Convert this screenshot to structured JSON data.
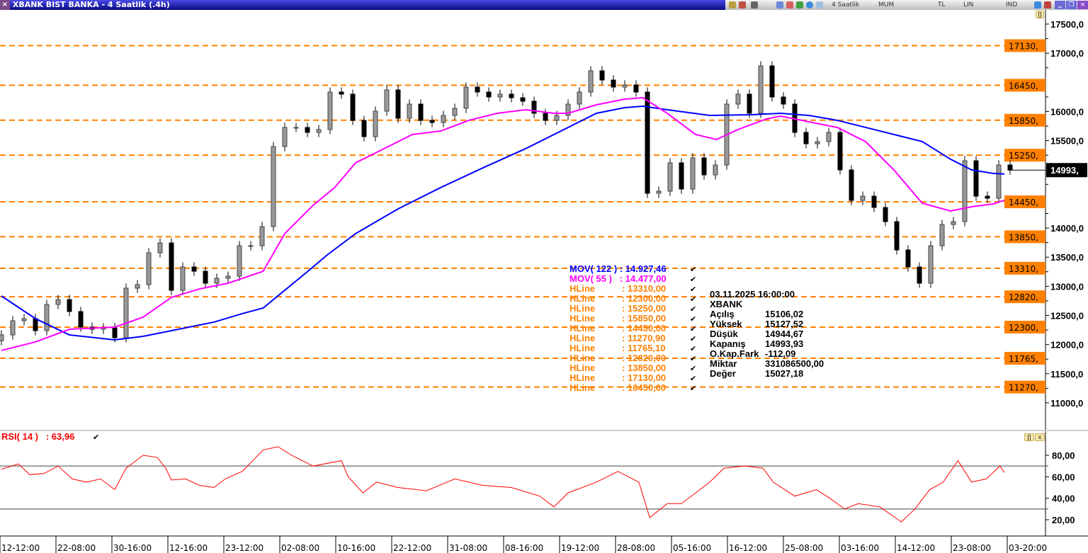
{
  "window": {
    "title": "XBANK BIST BANKA - 4 Saatlik (.4h)",
    "close_glyph": "×"
  },
  "toolbar": {
    "period": "4 Saatlik",
    "chart_type": "MUM",
    "currency": "TL",
    "scale": "LIN",
    "indicator": "IND",
    "minimize": "‗",
    "restore": "❐",
    "close": "×"
  },
  "legend": {
    "mov122": {
      "label": "MOV( 122 )",
      "value": ": 14.927,46",
      "color": "#0000ff"
    },
    "mov55": {
      "label": "MOV( 55 )",
      "value": ": 14.477,00",
      "color": "#ff00ff"
    },
    "hlines": [
      {
        "label": "HLine",
        "value": ": 13310,00"
      },
      {
        "label": "HLine",
        "value": ": 12300,00"
      },
      {
        "label": "HLine",
        "value": ": 15250,00"
      },
      {
        "label": "HLine",
        "value": ": 15850,00"
      },
      {
        "label": "HLine",
        "value": ": 14450,00"
      },
      {
        "label": "HLine",
        "value": ": 11270,90"
      },
      {
        "label": "HLine",
        "value": ": 11765,10"
      },
      {
        "label": "HLine",
        "value": ": 12820,00"
      },
      {
        "label": "HLine",
        "value": ": 13850,00"
      },
      {
        "label": "HLine",
        "value": ": 17130,00"
      },
      {
        "label": "HLine",
        "value": ": 16450,00"
      }
    ],
    "hline_color": "#ff8000",
    "check": "✔"
  },
  "info": {
    "datetime": "03.11.2025  16:00:00",
    "symbol": "XBANK",
    "rows": [
      {
        "k": "Açılış",
        "v": "15106,02"
      },
      {
        "k": "Yüksek",
        "v": "15127,52"
      },
      {
        "k": "Düşük",
        "v": "14944,67"
      },
      {
        "k": "Kapanış",
        "v": "14993,93"
      },
      {
        "k": "O.Kap.Fark",
        "v": "-112,09"
      },
      {
        "k": "Miktar",
        "v": "331086500,00"
      },
      {
        "k": "Değer",
        "v": "15027,18"
      }
    ]
  },
  "rsi": {
    "label": "RSI( 14 )",
    "value": ": 63,96",
    "color": "#ff0000",
    "check": "✔"
  },
  "panel_buttons": {
    "maximize": "[]",
    "close": "x"
  },
  "chart_data": [
    {
      "type": "candlestick",
      "ylim": [
        10600,
        17800
      ],
      "y_ticks": [
        "17500,0",
        "17000,0",
        "16000,0",
        "15500,0",
        "14000,0",
        "13500,0",
        "13000,0",
        "12500,0",
        "12000,0",
        "11500,0",
        "11000,0"
      ],
      "y_tick_values": [
        17500,
        17000,
        16000,
        15500,
        14000,
        13500,
        13000,
        12500,
        12000,
        11500,
        11000
      ],
      "last_price": {
        "value": 14993.93,
        "label": "14993,"
      },
      "hlines": [
        {
          "value": 17130,
          "label": "17130,"
        },
        {
          "value": 16450,
          "label": "16450,"
        },
        {
          "value": 15850,
          "label": "15850,"
        },
        {
          "value": 15250,
          "label": "15250,"
        },
        {
          "value": 14450,
          "label": "14450,"
        },
        {
          "value": 13850,
          "label": "13850,"
        },
        {
          "value": 13310,
          "label": "13310,"
        },
        {
          "value": 12820,
          "label": "12820,"
        },
        {
          "value": 12300,
          "label": "12300,"
        },
        {
          "value": 11765.1,
          "label": "11765,"
        },
        {
          "value": 11270.9,
          "label": "11270,"
        }
      ],
      "x_labels": [
        "12-12:00",
        "22-08:00",
        "30-16:00",
        "12-16:00",
        "23-12:00",
        "02-08:00",
        "10-16:00",
        "22-12:00",
        "31-08:00",
        "08-16:00",
        "19-12:00",
        "28-08:00",
        "05-16:00",
        "16-12:00",
        "25-08:00",
        "03-16:00",
        "14-12:00",
        "23-08:00",
        "03-20:00"
      ],
      "close": [
        12166,
        12409,
        12445,
        12239,
        12688,
        12773,
        12567,
        12300,
        12263,
        12288,
        12118,
        12968,
        13029,
        13575,
        13745,
        12931,
        13332,
        13259,
        13053,
        13138,
        13174,
        13697,
        13697,
        14025,
        15398,
        15726,
        15726,
        15641,
        15690,
        16334,
        16297,
        15847,
        15568,
        16006,
        16370,
        15884,
        16127,
        15847,
        15811,
        15932,
        16054,
        16419,
        16334,
        16249,
        16297,
        16236,
        16176,
        15969,
        15847,
        15932,
        16127,
        16334,
        16698,
        16540,
        16419,
        16455,
        16334,
        14596,
        14632,
        15119,
        14669,
        15204,
        14912,
        15082,
        16127,
        16297,
        15969,
        16783,
        16249,
        16127,
        15641,
        15446,
        15483,
        15641,
        14997,
        14474,
        14547,
        14353,
        14110,
        13624,
        13332,
        13053,
        13697,
        14061,
        14110,
        15155,
        14547,
        14511,
        15082,
        14993.93
      ],
      "series": [
        {
          "name": "MOV( 122 )",
          "color": "#0000ff",
          "points": [
            [
              0,
              12834
            ],
            [
              3,
              12446
            ],
            [
              6,
              12166
            ],
            [
              10,
              12081
            ],
            [
              12.5,
              12142
            ],
            [
              15,
              12239
            ],
            [
              18.75,
              12385
            ],
            [
              21.25,
              12531
            ],
            [
              23.1,
              12628
            ],
            [
              25,
              12932
            ],
            [
              26.9,
              13235
            ],
            [
              28.75,
              13539
            ],
            [
              31.25,
              13904
            ],
            [
              35,
              14329
            ],
            [
              38.75,
              14694
            ],
            [
              42.5,
              15034
            ],
            [
              46.25,
              15362
            ],
            [
              50,
              15726
            ],
            [
              52.5,
              15969
            ],
            [
              55,
              16066
            ],
            [
              56.6,
              16091
            ],
            [
              58.75,
              16030
            ],
            [
              62.5,
              15933
            ],
            [
              66.25,
              15945
            ],
            [
              68.75,
              15969
            ],
            [
              71.25,
              15933
            ],
            [
              73.75,
              15848
            ],
            [
              77.5,
              15666
            ],
            [
              81.25,
              15484
            ],
            [
              83.75,
              15180
            ],
            [
              85.6,
              14998
            ],
            [
              87.5,
              14937
            ],
            [
              88.5,
              14927
            ]
          ]
        },
        {
          "name": "MOV( 55 )",
          "color": "#ff00ff",
          "points": [
            [
              0,
              11899
            ],
            [
              3,
              12045
            ],
            [
              6,
              12263
            ],
            [
              10,
              12300
            ],
            [
              12.5,
              12470
            ],
            [
              15,
              12810
            ],
            [
              17.5,
              12956
            ],
            [
              20,
              13053
            ],
            [
              23.1,
              13259
            ],
            [
              25,
              13904
            ],
            [
              27.5,
              14390
            ],
            [
              29.4,
              14694
            ],
            [
              31.25,
              15119
            ],
            [
              33.75,
              15362
            ],
            [
              36.25,
              15605
            ],
            [
              38.75,
              15665
            ],
            [
              41.25,
              15848
            ],
            [
              43.75,
              15969
            ],
            [
              46.25,
              16030
            ],
            [
              48.75,
              15969
            ],
            [
              50,
              15969
            ],
            [
              52.5,
              16115
            ],
            [
              55,
              16212
            ],
            [
              56.6,
              16236
            ],
            [
              58.75,
              15969
            ],
            [
              61.25,
              15605
            ],
            [
              63.1,
              15520
            ],
            [
              65,
              15690
            ],
            [
              67.5,
              15872
            ],
            [
              68.75,
              15920
            ],
            [
              71.25,
              15823
            ],
            [
              73.75,
              15726
            ],
            [
              76.25,
              15483
            ],
            [
              78.75,
              14997
            ],
            [
              81.25,
              14426
            ],
            [
              83.75,
              14292
            ],
            [
              85.6,
              14365
            ],
            [
              87.5,
              14414
            ],
            [
              88.5,
              14477
            ]
          ]
        }
      ]
    },
    {
      "type": "line",
      "name": "RSI( 14 )",
      "ylim": [
        10,
        95
      ],
      "y_ticks": [
        "80,00",
        "60,00",
        "40,00",
        "20,00"
      ],
      "y_tick_values": [
        80,
        60,
        40,
        20
      ],
      "levels": [
        70,
        30
      ],
      "points": [
        [
          0,
          67
        ],
        [
          1.5,
          72
        ],
        [
          2.5,
          62
        ],
        [
          3.75,
          63
        ],
        [
          5,
          70
        ],
        [
          6.25,
          58
        ],
        [
          7.5,
          55
        ],
        [
          8.75,
          58
        ],
        [
          10,
          48
        ],
        [
          11,
          68
        ],
        [
          12.5,
          80
        ],
        [
          13.75,
          78
        ],
        [
          14.5,
          68
        ],
        [
          15,
          57
        ],
        [
          16.25,
          58
        ],
        [
          17.5,
          52
        ],
        [
          18.75,
          50
        ],
        [
          19.75,
          58
        ],
        [
          21.25,
          65
        ],
        [
          23.1,
          85
        ],
        [
          24.4,
          88
        ],
        [
          25.6,
          80
        ],
        [
          27.5,
          70
        ],
        [
          30,
          75
        ],
        [
          30.6,
          60
        ],
        [
          31.9,
          45
        ],
        [
          33.1,
          55
        ],
        [
          35,
          50
        ],
        [
          37.5,
          47
        ],
        [
          40,
          58
        ],
        [
          42.5,
          52
        ],
        [
          45,
          50
        ],
        [
          47.5,
          42
        ],
        [
          48.75,
          32
        ],
        [
          50,
          45
        ],
        [
          52.5,
          55
        ],
        [
          54.4,
          65
        ],
        [
          56.25,
          55
        ],
        [
          57.2,
          22
        ],
        [
          58.75,
          35
        ],
        [
          60,
          35
        ],
        [
          61.25,
          45
        ],
        [
          62.5,
          55
        ],
        [
          63.75,
          68
        ],
        [
          65.6,
          70
        ],
        [
          67.2,
          68
        ],
        [
          68.1,
          55
        ],
        [
          70,
          42
        ],
        [
          71.9,
          48
        ],
        [
          73.1,
          40
        ],
        [
          74.4,
          30
        ],
        [
          75.6,
          35
        ],
        [
          77.5,
          32
        ],
        [
          79.4,
          18
        ],
        [
          80.6,
          30
        ],
        [
          81.9,
          48
        ],
        [
          83.1,
          55
        ],
        [
          84.4,
          75
        ],
        [
          85.6,
          55
        ],
        [
          86.9,
          58
        ],
        [
          88.1,
          70
        ],
        [
          88.5,
          63.96
        ]
      ]
    }
  ]
}
